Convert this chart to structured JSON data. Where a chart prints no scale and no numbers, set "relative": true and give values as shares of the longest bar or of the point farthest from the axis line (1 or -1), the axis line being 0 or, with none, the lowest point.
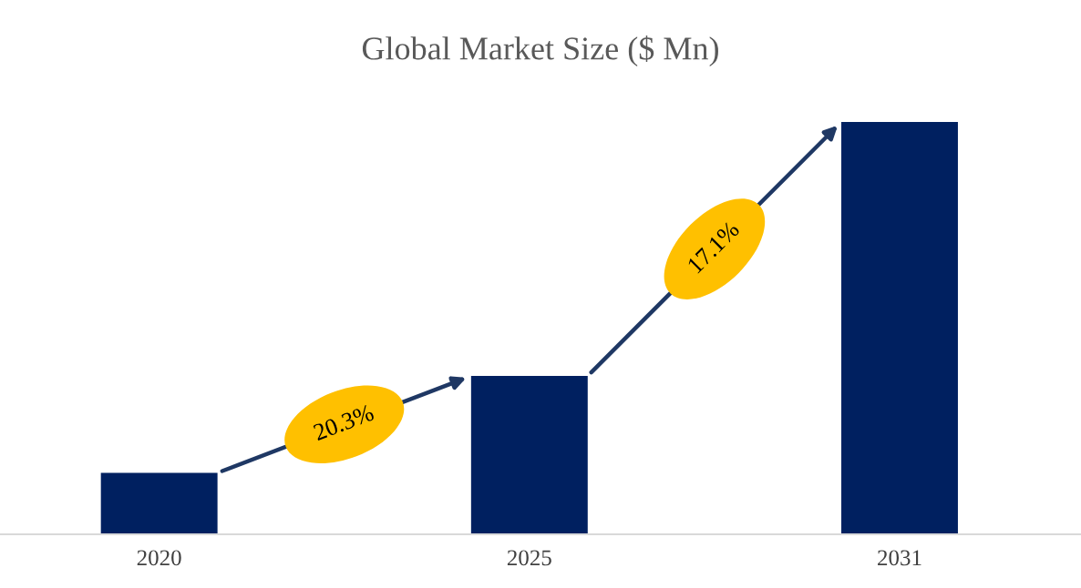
{
  "chart_data": {
    "type": "bar",
    "title": "Global Market Size ($ Mn)",
    "categories": [
      "2020",
      "2025",
      "2031"
    ],
    "values": [
      0.149,
      0.384,
      1
    ],
    "color": "#002060",
    "relative": true,
    "grid": false,
    "annotations": [
      "20.3%",
      "17.1%"
    ]
  }
}
